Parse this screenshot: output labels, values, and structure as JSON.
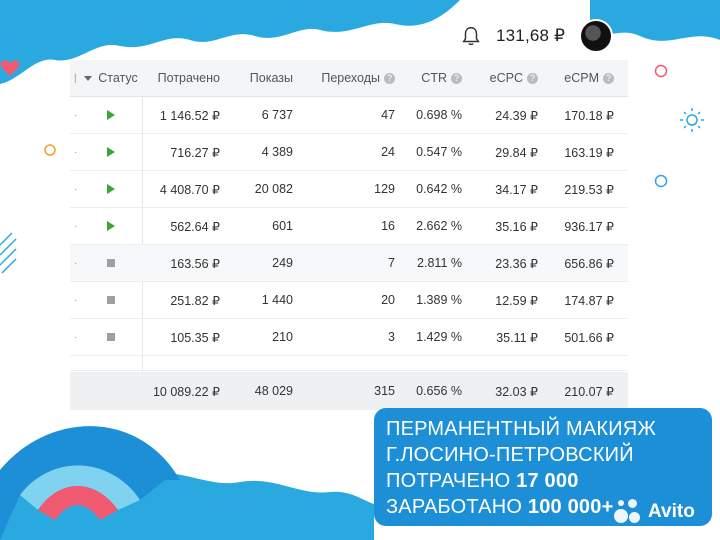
{
  "topbar": {
    "balance": "131,68 ₽"
  },
  "table": {
    "headers": {
      "status": "Статус",
      "spent": "Потрачено",
      "views": "Показы",
      "clicks": "Переходы",
      "ctr": "CTR",
      "ecpc": "eCPC",
      "ecpm": "eCPM"
    },
    "rows": [
      {
        "status": "active",
        "spent": "1 146.52 ₽",
        "views": "6 737",
        "clicks": "47",
        "ctr": "0.698 %",
        "ecpc": "24.39 ₽",
        "ecpm": "170.18 ₽"
      },
      {
        "status": "active",
        "spent": "716.27 ₽",
        "views": "4 389",
        "clicks": "24",
        "ctr": "0.547 %",
        "ecpc": "29.84 ₽",
        "ecpm": "163.19 ₽"
      },
      {
        "status": "active",
        "spent": "4 408.70 ₽",
        "views": "20 082",
        "clicks": "129",
        "ctr": "0.642 %",
        "ecpc": "34.17 ₽",
        "ecpm": "219.53 ₽"
      },
      {
        "status": "active",
        "spent": "562.64 ₽",
        "views": "601",
        "clicks": "16",
        "ctr": "2.662 %",
        "ecpc": "35.16 ₽",
        "ecpm": "936.17 ₽"
      },
      {
        "status": "stopped",
        "spent": "163.56 ₽",
        "views": "249",
        "clicks": "7",
        "ctr": "2.811 %",
        "ecpc": "23.36 ₽",
        "ecpm": "656.86 ₽"
      },
      {
        "status": "stopped",
        "spent": "251.82 ₽",
        "views": "1 440",
        "clicks": "20",
        "ctr": "1.389 %",
        "ecpc": "12.59 ₽",
        "ecpm": "174.87 ₽"
      },
      {
        "status": "stopped",
        "spent": "105.35 ₽",
        "views": "210",
        "clicks": "3",
        "ctr": "1.429 %",
        "ecpc": "35.11 ₽",
        "ecpm": "501.66 ₽"
      }
    ],
    "total": {
      "spent": "10 089.22 ₽",
      "views": "48 029",
      "clicks": "315",
      "ctr": "0.656 %",
      "ecpc": "32.03 ₽",
      "ecpm": "210.07 ₽"
    }
  },
  "promo": {
    "line1": "ПЕРМАНЕНТНЫЙ МАКИЯЖ",
    "line2": "Г.ЛОСИНО-ПЕТРОВСКИЙ",
    "line3_label": "ПОТРАЧЕНО ",
    "line3_value": "17 000",
    "line4_label": "ЗАРАБОТАНО ",
    "line4_value": "100 000+"
  },
  "watermark": {
    "brand": "Avito"
  },
  "icons": {
    "bell": "bell-icon",
    "help": "question-circle-icon",
    "play": "play-icon",
    "stop": "stop-icon"
  },
  "colors": {
    "wave_blue": "#29a9e0",
    "promo_blue": "#1d8fd6",
    "status_active": "#3aa63a",
    "status_stopped": "#9aa0a6",
    "rainbow_outer": "#1d8fd6",
    "rainbow_mid": "#7fd3f0",
    "rainbow_inner": "#f05a70"
  }
}
